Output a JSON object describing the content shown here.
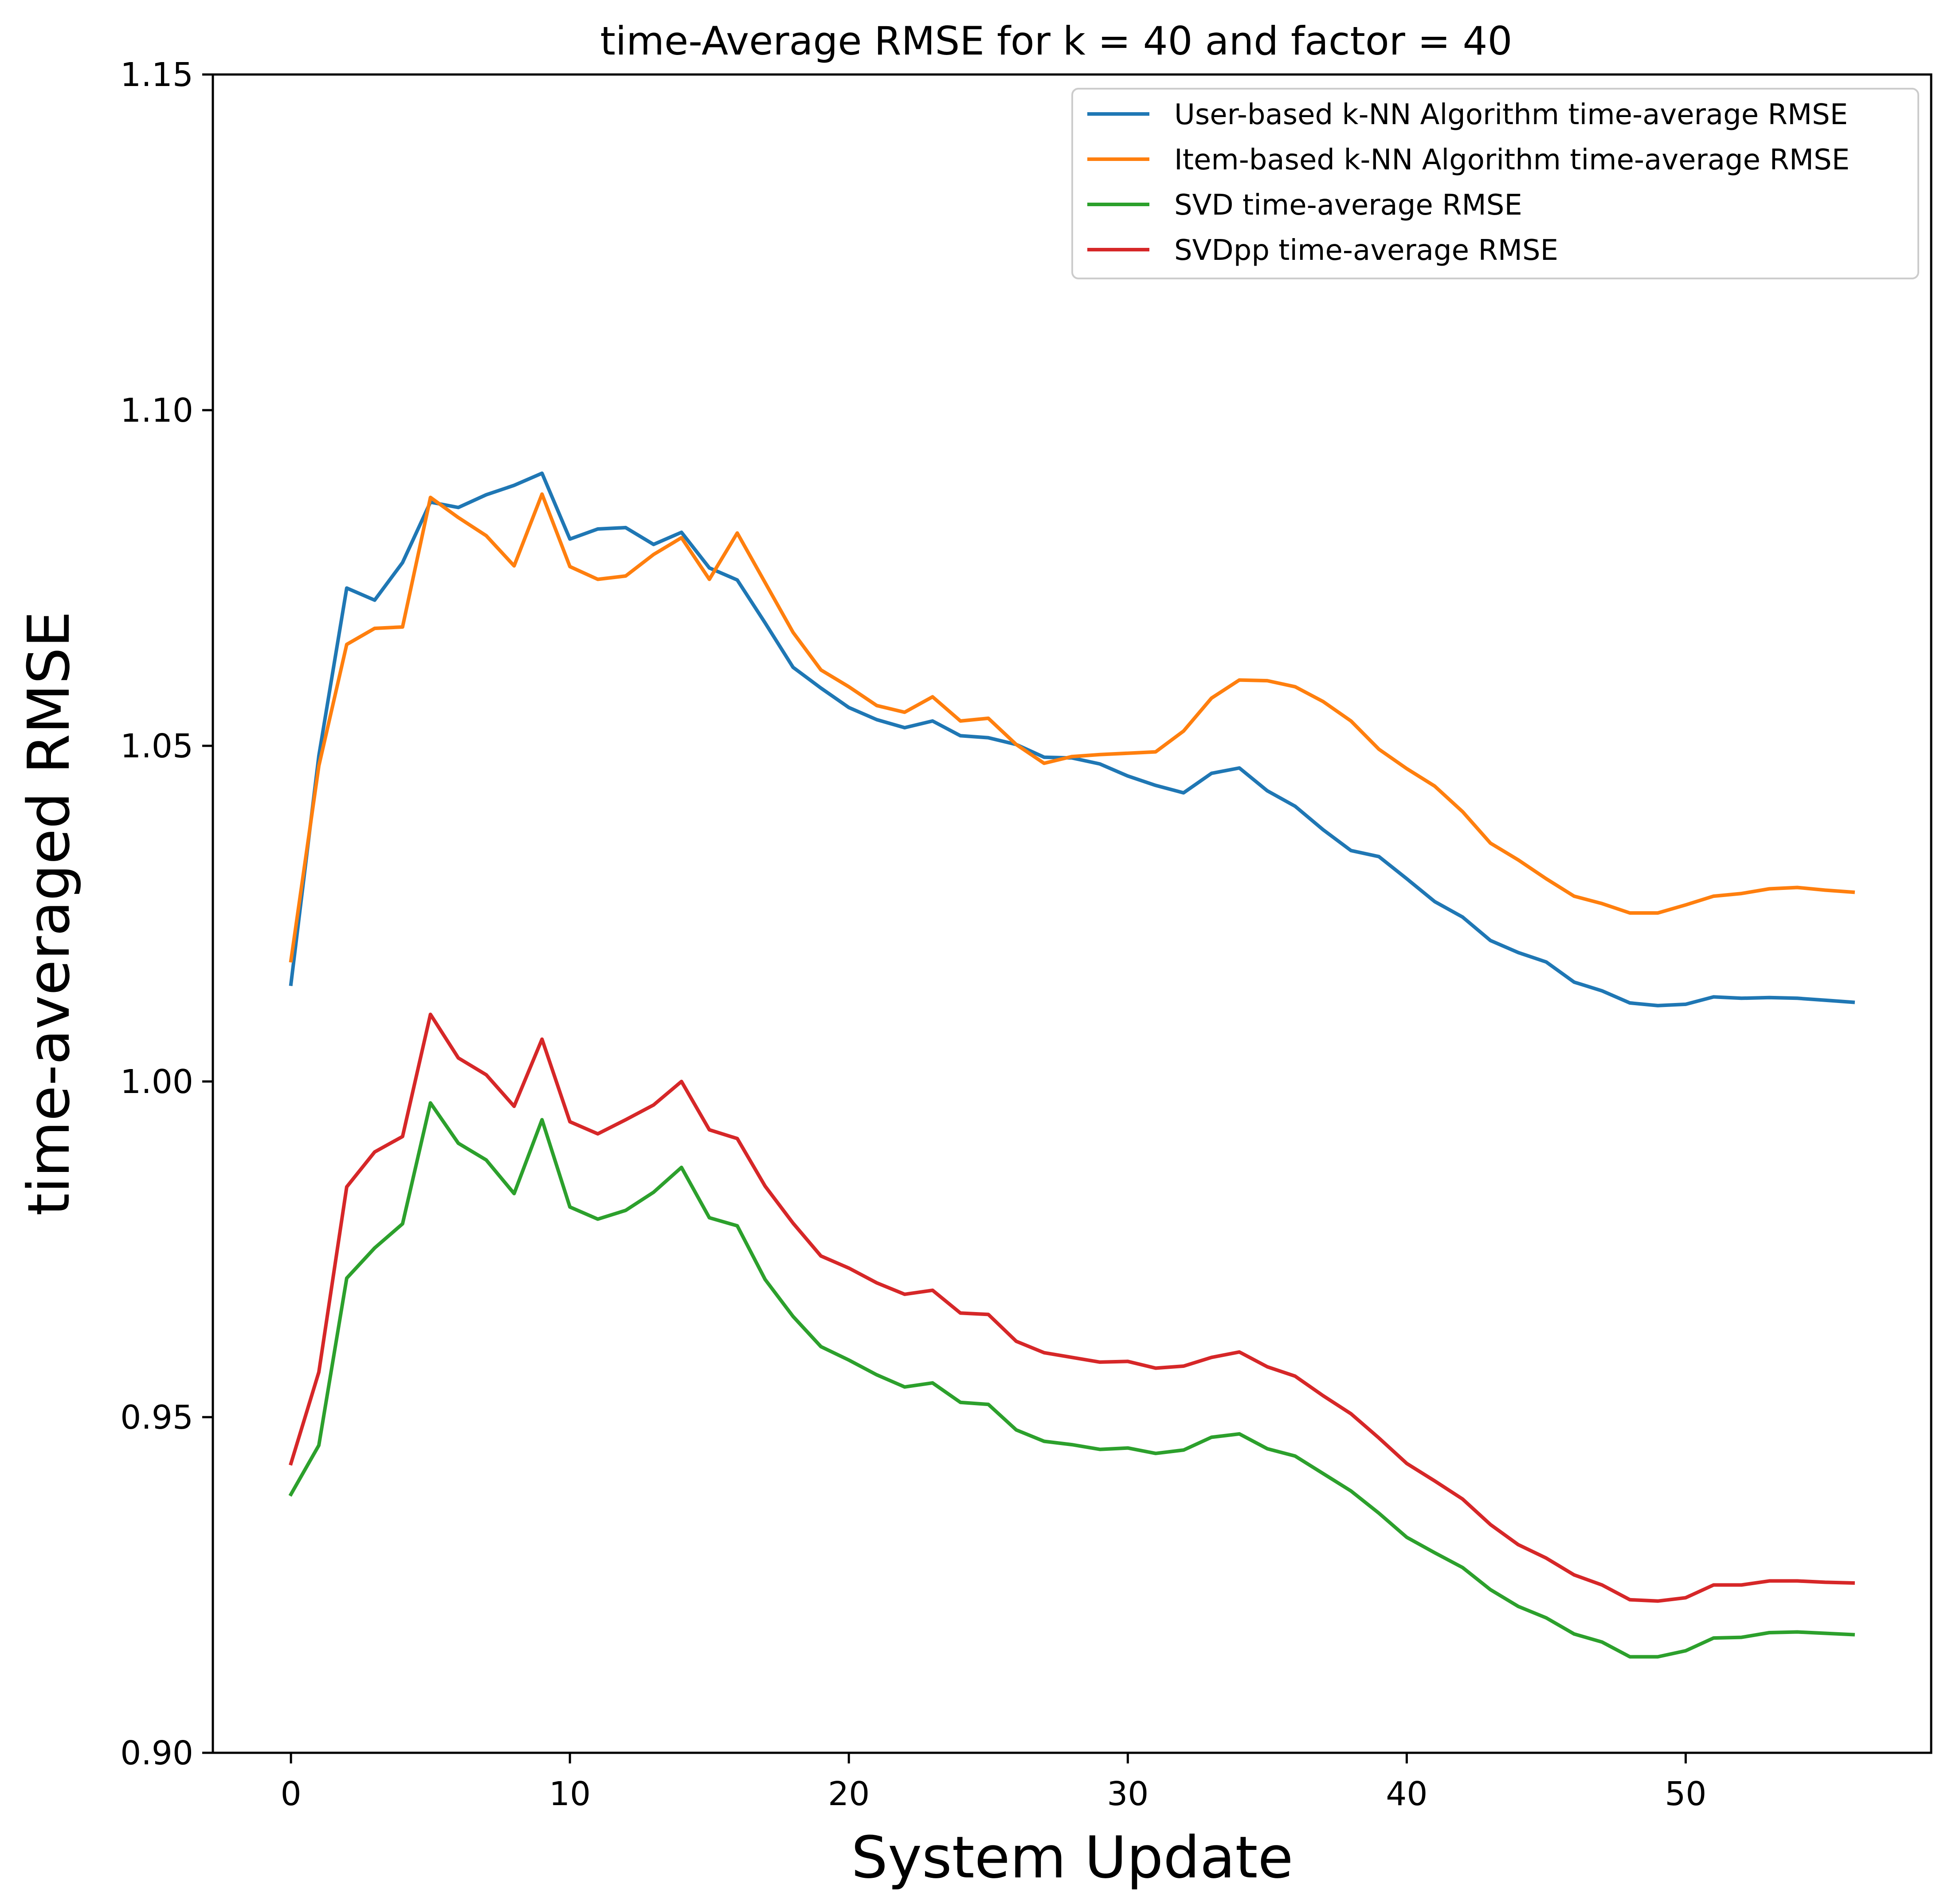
{
  "chart_data": {
    "type": "line",
    "title": "time-Average RMSE for k = 40 and factor = 40",
    "xlabel": "System Update",
    "ylabel": "time-averaged RMSE",
    "xlim": [
      -2.8,
      58.8
    ],
    "ylim": [
      0.9,
      1.15
    ],
    "xticks": [
      0,
      10,
      20,
      30,
      40,
      50
    ],
    "xtick_labels": [
      "0",
      "10",
      "20",
      "30",
      "40",
      "50"
    ],
    "yticks": [
      0.9,
      0.95,
      1.0,
      1.05,
      1.1,
      1.15
    ],
    "ytick_labels": [
      "0.90",
      "0.95",
      "1.00",
      "1.05",
      "1.10",
      "1.15"
    ],
    "grid": false,
    "legend_position": "top-right",
    "x": [
      0,
      1,
      2,
      3,
      4,
      5,
      6,
      7,
      8,
      9,
      10,
      11,
      12,
      13,
      14,
      15,
      16,
      17,
      18,
      19,
      20,
      21,
      22,
      23,
      24,
      25,
      26,
      27,
      28,
      29,
      30,
      31,
      32,
      33,
      34,
      35,
      36,
      37,
      38,
      39,
      40,
      41,
      42,
      43,
      44,
      45,
      46,
      47,
      48,
      49,
      50,
      51,
      52,
      53,
      54,
      55,
      56
    ],
    "series": [
      {
        "name": "User-based k-NN Algorithm time-average RMSE",
        "color": "#1f77b4",
        "values": [
          1.0145,
          1.0485,
          1.0735,
          1.0717,
          1.0773,
          1.0863,
          1.0855,
          1.0874,
          1.0888,
          1.0906,
          1.0808,
          1.0823,
          1.0825,
          1.08,
          1.0818,
          1.0765,
          1.0747,
          1.0683,
          1.0617,
          1.0586,
          1.0557,
          1.0539,
          1.0527,
          1.0537,
          1.0515,
          1.0512,
          1.0502,
          1.0483,
          1.0482,
          1.0473,
          1.0455,
          1.0441,
          1.043,
          1.0459,
          1.0467,
          1.0433,
          1.041,
          1.0375,
          1.0344,
          1.0335,
          1.0302,
          1.0268,
          1.0245,
          1.021,
          1.0192,
          1.0178,
          1.0148,
          1.0135,
          1.0117,
          1.0113,
          1.0115,
          1.0126,
          1.0124,
          1.0125,
          1.0124,
          1.0121,
          1.0118
        ]
      },
      {
        "name": "Item-based k-NN Algorithm time-average RMSE",
        "color": "#ff7f0e",
        "values": [
          1.018,
          1.047,
          1.0651,
          1.0675,
          1.0677,
          1.087,
          1.084,
          1.0813,
          1.0768,
          1.0875,
          1.0767,
          1.0748,
          1.0753,
          1.0785,
          1.081,
          1.0748,
          1.0817,
          1.0743,
          1.0669,
          1.0613,
          1.0588,
          1.056,
          1.055,
          1.0573,
          1.0537,
          1.0541,
          1.0502,
          1.0474,
          1.0484,
          1.0487,
          1.0489,
          1.0491,
          1.0522,
          1.0571,
          1.0598,
          1.0597,
          1.0588,
          1.0566,
          1.0537,
          1.0495,
          1.0466,
          1.044,
          1.0402,
          1.0355,
          1.033,
          1.0302,
          1.0276,
          1.0265,
          1.0251,
          1.0251,
          1.0263,
          1.0276,
          1.028,
          1.0287,
          1.0289,
          1.0285,
          1.0282
        ]
      },
      {
        "name": "SVD time-average RMSE",
        "color": "#2ca02c",
        "values": [
          0.9385,
          0.9458,
          0.9707,
          0.9752,
          0.9788,
          0.9968,
          0.9908,
          0.9883,
          0.9833,
          0.9943,
          0.9813,
          0.9795,
          0.9808,
          0.9835,
          0.9872,
          0.9797,
          0.9785,
          0.9705,
          0.965,
          0.9605,
          0.9585,
          0.9563,
          0.9545,
          0.9551,
          0.9522,
          0.9519,
          0.9481,
          0.9464,
          0.9459,
          0.9452,
          0.9454,
          0.9446,
          0.9451,
          0.947,
          0.9475,
          0.9453,
          0.9442,
          0.9416,
          0.939,
          0.9357,
          0.9321,
          0.9298,
          0.9276,
          0.9243,
          0.9218,
          0.9201,
          0.9177,
          0.9165,
          0.9143,
          0.9143,
          0.9152,
          0.9171,
          0.9172,
          0.9179,
          0.918,
          0.9178,
          0.9176
        ]
      },
      {
        "name": "SVDpp time-average RMSE",
        "color": "#d62728",
        "values": [
          0.9431,
          0.9567,
          0.9843,
          0.9895,
          0.9918,
          1.01,
          1.0035,
          1.001,
          0.9963,
          1.0063,
          0.994,
          0.9922,
          0.9943,
          0.9965,
          1.0,
          0.9928,
          0.9915,
          0.9844,
          0.9789,
          0.974,
          0.9722,
          0.97,
          0.9683,
          0.9689,
          0.9655,
          0.9653,
          0.9613,
          0.9596,
          0.9589,
          0.9582,
          0.9583,
          0.9573,
          0.9576,
          0.9589,
          0.9597,
          0.9575,
          0.9561,
          0.9532,
          0.9505,
          0.9469,
          0.9431,
          0.9405,
          0.9378,
          0.934,
          0.931,
          0.929,
          0.9265,
          0.925,
          0.9228,
          0.9226,
          0.9231,
          0.925,
          0.925,
          0.9256,
          0.9256,
          0.9254,
          0.9253
        ]
      }
    ]
  }
}
